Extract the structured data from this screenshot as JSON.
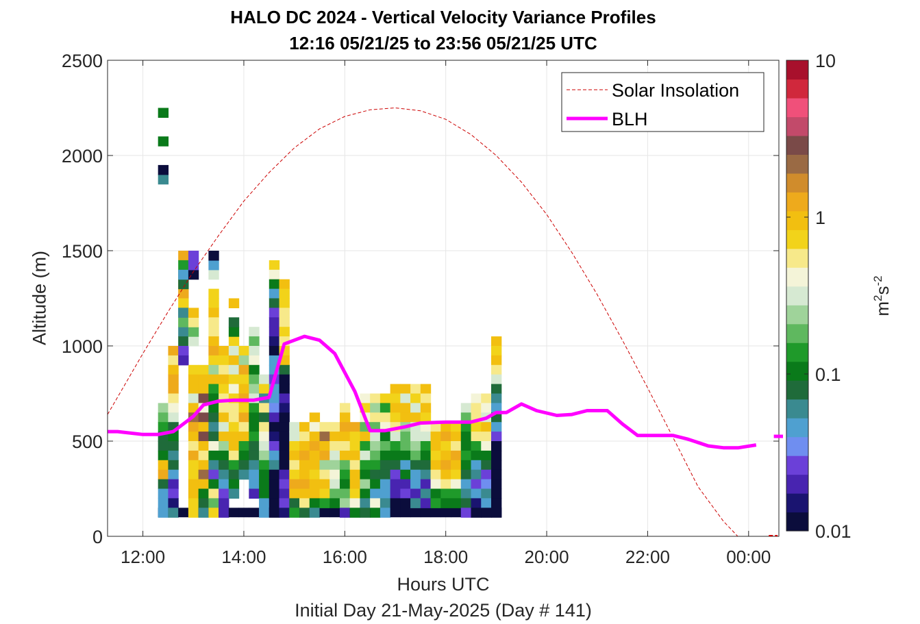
{
  "chart_data": {
    "type": "heatmap",
    "title": "HALO DC 2024 - Vertical Velocity Variance Profiles",
    "subtitle": "12:16 05/21/25 to 23:56 05/21/25  UTC",
    "xlabel": "Hours UTC",
    "note": "Initial Day 21-May-2025 (Day # 141)",
    "ylabel": "Altitude (m)",
    "x_ticks": [
      "12:00",
      "14:00",
      "16:00",
      "18:00",
      "20:00",
      "22:00",
      "00:00"
    ],
    "x_tick_hours": [
      12,
      14,
      16,
      18,
      20,
      22,
      24
    ],
    "x_range_hours": [
      11.3,
      24.6
    ],
    "y_ticks": [
      0,
      500,
      1000,
      1500,
      2000,
      2500
    ],
    "ylim": [
      0,
      2500
    ],
    "grid": true,
    "legend_position": "top-right",
    "colorbar": {
      "label_base": "m",
      "label_sup1": "2",
      "label_mid": "s",
      "label_sup2": "-2",
      "scale": "log",
      "range": [
        0.01,
        10
      ],
      "tick_labels": [
        "0.01",
        "0.1",
        "1",
        "10"
      ],
      "tick_values": [
        0.01,
        0.1,
        1,
        10
      ],
      "colors": [
        "#0b0d3c",
        "#1a1470",
        "#4824b0",
        "#6b40d8",
        "#6f8ef0",
        "#4fa0d0",
        "#3a8a90",
        "#1f6b3a",
        "#0a7a1a",
        "#1f9a2a",
        "#5fb85f",
        "#9fd39a",
        "#d6e9d2",
        "#f4f4d8",
        "#f7e98a",
        "#f2d31a",
        "#f2bf10",
        "#eeaa1c",
        "#d08c2c",
        "#9a6a44",
        "#7a4a48",
        "#c24a6a",
        "#f0507a",
        "#d0283c",
        "#a8102c"
      ]
    },
    "series": [
      {
        "name": "Solar Insolation",
        "style": "dashed",
        "color": "#cc0000",
        "x_hours": [
          11.3,
          12.0,
          12.5,
          13.0,
          13.5,
          14.0,
          14.5,
          15.0,
          15.5,
          16.0,
          16.5,
          17.0,
          17.5,
          18.0,
          18.5,
          19.0,
          19.5,
          20.0,
          20.5,
          21.0,
          21.5,
          22.0,
          22.5,
          23.0,
          23.5,
          24.0,
          24.25,
          24.6
        ],
        "altitude_m": [
          640,
          960,
          1180,
          1390,
          1580,
          1760,
          1910,
          2040,
          2140,
          2205,
          2240,
          2250,
          2235,
          2190,
          2110,
          2000,
          1860,
          1690,
          1490,
          1270,
          1030,
          780,
          520,
          260,
          80,
          -60,
          -150,
          -150
        ]
      },
      {
        "name": "BLH",
        "style": "solid",
        "color": "#ff00ff",
        "x_hours": [
          11.3,
          11.5,
          12.0,
          12.3,
          12.6,
          13.0,
          13.2,
          13.5,
          13.8,
          14.2,
          14.5,
          14.8,
          15.0,
          15.2,
          15.5,
          15.8,
          16.2,
          16.5,
          16.8,
          17.2,
          17.5,
          18.0,
          18.5,
          18.8,
          19.0,
          19.2,
          19.5,
          19.8,
          20.2,
          20.5,
          20.8,
          21.2,
          21.5,
          21.8,
          22.2,
          22.5,
          22.8,
          23.2,
          23.5,
          23.8,
          24.15
        ],
        "altitude_m": [
          550,
          550,
          535,
          535,
          550,
          630,
          690,
          710,
          715,
          715,
          730,
          1010,
          1030,
          1050,
          1030,
          960,
          760,
          555,
          555,
          575,
          595,
          600,
          600,
          620,
          650,
          650,
          695,
          660,
          635,
          640,
          660,
          660,
          590,
          530,
          530,
          530,
          510,
          475,
          465,
          465,
          480
        ],
        "offscale_segment_hours": [
          24.5,
          24.6
        ],
        "offscale_segment_altitude_m": [
          525,
          525
        ]
      }
    ],
    "heatmap": {
      "column_start_hour": 12.3,
      "column_width_hours": 0.2,
      "row_height_m": 50,
      "bottom_row_base_m": 100,
      "bottom_row_value": 0.01,
      "columns": [
        {
          "top": 700,
          "vals": [
            0.25,
            0.2,
            0.15,
            0.09,
            0.08,
            0.12,
            0.9,
            1.2,
            0.07,
            0.04,
            0.05,
            0.045,
            0.04,
            0.06,
            0.05,
            0.04,
            0.07,
            0.06,
            0.05,
            0.06,
            0.045,
            0.055,
            0.04,
            0.02,
            0.05,
            0.07,
            0.08,
            0.05,
            0.035,
            0.06,
            0.07,
            0.15,
            0.1,
            0.3,
            0.6,
            1.0,
            0.7,
            0.4,
            0.012,
            0.05,
            0.02,
            0.01
          ],
          "extra": [
            {
              "alt": 1900,
              "v": 0.06
            },
            {
              "alt": 1950,
              "v": 0.01
            },
            {
              "alt": 2100,
              "v": 0.12
            },
            {
              "alt": 2250,
              "v": 0.12
            }
          ]
        },
        {
          "top": 1000,
          "vals": [
            1.2,
            0.6,
            1.0,
            1.2,
            1.1,
            0.5,
            0.4,
            0.3,
            0.09,
            0.1,
            0.08,
            0.06,
            0.07,
            0.05,
            0.02,
            0.025,
            0.015,
            0.06,
            0.025
          ]
        },
        {
          "top": 1500,
          "vals": [
            1.2,
            0.15,
            0.1,
            1.1,
            1.3,
            0.8,
            0.06,
            0.5,
            0.06,
            0.07,
            0.03,
            0.02
          ],
          "extra": [
            {
              "alt": 1150,
              "v": 0.2
            },
            {
              "alt": 1200,
              "v": 0.06
            },
            {
              "alt": 1350,
              "v": 0.08
            },
            {
              "alt": 1400,
              "v": 0.05
            }
          ]
        },
        {
          "top": 900,
          "vals": [
            0.7,
            0.9,
            1.0,
            0.35,
            0.9,
            2.0,
            1.2,
            1.0,
            0.5,
            1.1,
            0.7,
            0.8,
            0.9,
            1.0,
            0.7,
            0.8
          ],
          "extra": [
            {
              "alt": 1050,
              "v": 0.3
            },
            {
              "alt": 1100,
              "v": 0.2
            },
            {
              "alt": 1150,
              "v": 0.5
            },
            {
              "alt": 1200,
              "v": 0.9
            },
            {
              "alt": 1400,
              "v": 0.01
            },
            {
              "alt": 1450,
              "v": 0.025
            },
            {
              "alt": 1500,
              "v": 0.03
            }
          ]
        },
        {
          "top": 900,
          "vals": [
            0.8,
            1.0,
            0.9,
            3.0,
            0.4,
            3.0,
            0.9,
            3.0,
            1.0,
            0.5,
            1.0,
            2.0,
            1.0,
            0.12,
            0.08,
            0.06
          ]
        },
        {
          "top": 1300,
          "vals": [
            0.8,
            0.7,
            1.0,
            0.6,
            0.5,
            0.9,
            1.1,
            0.7,
            0.25,
            0.9,
            0.15,
            0.1,
            0.12,
            0.08,
            0.06,
            0.07,
            0.4,
            0.12,
            0.06,
            0.03,
            0.1,
            0.5,
            0.2,
            0.7
          ],
          "extra": [
            {
              "alt": 1400,
              "v": 0.3
            },
            {
              "alt": 1450,
              "v": 0.04
            },
            {
              "alt": 1500,
              "v": 0.01
            }
          ]
        },
        {
          "top": 1000,
          "vals": [
            0.9,
            0.8,
            0.6,
            1.0,
            0.7,
            0.5,
            0.6,
            0.9,
            0.3,
            1.0,
            0.25,
            0.12,
            0.08,
            0.06,
            0.04,
            0.025,
            0.02,
            0.02,
            0.01,
            0.5,
            0.9,
            0.2
          ]
        },
        {
          "top": 1050,
          "vals": [
            0.7,
            0.3,
            0.9,
            0.3,
            0.8,
            0.4,
            0.8,
            0.6,
            0.5,
            0.8,
            0.9,
            1.0,
            0.5,
            0.15,
            0.08,
            0.12,
            0.06
          ],
          "extra": [
            {
              "alt": 1100,
              "v": 0.12
            },
            {
              "alt": 1150,
              "v": 0.07
            },
            {
              "alt": 1250,
              "v": 0.9
            }
          ]
        },
        {
          "top": 1000,
          "vals": [
            0.8,
            0.25,
            1.1,
            0.8,
            1.0,
            1.2,
            0.8,
            1.1,
            0.6,
            1.0,
            0.15,
            0.1,
            0.07,
            0.06
          ]
        },
        {
          "top": 1100,
          "vals": [
            0.35,
            0.2,
            0.3,
            0.4,
            0.12,
            0.2,
            0.25,
            0.3,
            0.15,
            0.12,
            0.1,
            0.14,
            0.08,
            0.07,
            0.06,
            0.05,
            0.04,
            0.02
          ]
        },
        {
          "top": 850,
          "vals": [
            0.3,
            0.7,
            0.06,
            0.5,
            0.07,
            0.6,
            0.4,
            0.3,
            0.25,
            0.15,
            0.12,
            0.1,
            0.12,
            0.05,
            0.04
          ]
        },
        {
          "top": 1450,
          "vals": [
            0.8,
            0.4,
            0.12,
            0.05,
            0.08,
            0.03,
            0.02,
            0.02,
            0.015,
            0.01,
            0.04,
            0.05,
            0.03,
            0.04,
            0.045,
            0.035,
            0.02,
            0.012,
            0.015,
            0.03,
            0.05,
            0.06,
            0.012,
            0.01,
            0.012,
            0.01,
            0.01
          ]
        },
        {
          "top": 1350,
          "vals": [
            1.0,
            0.8,
            0.7,
            0.5,
            0.6,
            0.7,
            0.5,
            0.7,
            0.9,
            0.08,
            0.01,
            0.01,
            0.02,
            0.015,
            0.01,
            0.01,
            0.01,
            0.01,
            0.01,
            0.012,
            0.02,
            0.025,
            0.02,
            0.03,
            0.015,
            0.012
          ]
        },
        {
          "top": 600,
          "vals": [
            0.3,
            0.35,
            0.7,
            1.0,
            0.6,
            0.8,
            1.2,
            1.0,
            0.08,
            0.15
          ]
        },
        {
          "top": 600,
          "vals": [
            1.0,
            0.6,
            0.9,
            1.2,
            1.0,
            0.9,
            1.1,
            0.9,
            0.6,
            0.07
          ]
        },
        {
          "top": 650,
          "vals": [
            1.0,
            0.4,
            0.9,
            1.1,
            0.9,
            1.0,
            0.8,
            0.9,
            1.0,
            0.1,
            0.06
          ]
        },
        {
          "top": 600,
          "vals": [
            0.6,
            2.0,
            1.0,
            1.2,
            0.25,
            0.6,
            0.9,
            0.8,
            0.15
          ]
        },
        {
          "top": 600,
          "vals": [
            0.5,
            0.9,
            0.5,
            0.3,
            0.25,
            0.4,
            0.3,
            0.2,
            0.1
          ]
        },
        {
          "top": 700,
          "vals": [
            0.6,
            1.0,
            1.4,
            0.9,
            0.6,
            0.9,
            0.2,
            0.15,
            0.12,
            0.2,
            0.25,
            0.02
          ]
        },
        {
          "top": 600,
          "vals": [
            1.2,
            0.8,
            0.7,
            1.0,
            0.6,
            1.0,
            0.9,
            0.7,
            0.4,
            0.12
          ]
        },
        {
          "top": 750,
          "vals": [
            0.4,
            0.8,
            0.4,
            0.2,
            0.9,
            0.15,
            0.3,
            0.15,
            0.12,
            0.25,
            0.12,
            0.06,
            0.08
          ]
        },
        {
          "top": 750,
          "vals": [
            0.6,
            0.25,
            0.5,
            0.2,
            0.3,
            0.25,
            0.18,
            0.15,
            0.08,
            0.12,
            0.04,
            0.4,
            0.1
          ]
        },
        {
          "top": 750,
          "vals": [
            0.8,
            0.15,
            0.6,
            0.4,
            0.12,
            0.2,
            0.1,
            0.08,
            0.07,
            0.05,
            0.045,
            0.06,
            0.045
          ]
        },
        {
          "top": 800,
          "vals": [
            0.9,
            0.7,
            1.0,
            0.8,
            0.5,
            0.3,
            0.15,
            0.12,
            0.07,
            0.025,
            0.02,
            0.02,
            0.01
          ]
        },
        {
          "top": 800,
          "vals": [
            0.9,
            0.3,
            0.9,
            1.0,
            0.25,
            0.2,
            0.18,
            0.12,
            0.04,
            0.1,
            0.02,
            0.03,
            0.01
          ]
        },
        {
          "top": 800,
          "vals": [
            0.6,
            0.8,
            0.35,
            0.9,
            0.3,
            0.3,
            0.25,
            0.2,
            0.07,
            0.05,
            0.04,
            0.02,
            0.06
          ]
        },
        {
          "top": 800,
          "vals": [
            1.0,
            0.6,
            1.0,
            0.8,
            0.4,
            0.3,
            0.15,
            0.12,
            0.08,
            0.06,
            0.02,
            0.06,
            0.02
          ]
        },
        {
          "top": 600,
          "vals": [
            0.6,
            0.9,
            1.0,
            0.8,
            0.9,
            0.6,
            0.4,
            0.12,
            0.15
          ]
        },
        {
          "top": 600,
          "vals": [
            1.0,
            1.2,
            0.8,
            1.0,
            1.1,
            0.9,
            0.5,
            0.15,
            0.12
          ]
        },
        {
          "top": 600,
          "vals": [
            0.7,
            1.0,
            0.6,
            1.1,
            1.0,
            0.8,
            0.4,
            0.15,
            0.1
          ]
        },
        {
          "top": 700,
          "vals": [
            0.3,
            0.2,
            0.15,
            0.12,
            0.1,
            0.15,
            0.12,
            0.08,
            0.05,
            0.06,
            0.07,
            0.025
          ]
        },
        {
          "top": 750,
          "vals": [
            0.4,
            0.6,
            0.5,
            0.8,
            0.6,
            0.15,
            0.12,
            0.05,
            0.06,
            0.03,
            0.04,
            0.015,
            0.01
          ]
        },
        {
          "top": 750,
          "vals": [
            0.5,
            0.4,
            0.3,
            0.9,
            0.6,
            0.4,
            0.12,
            0.08,
            0.025,
            0.035,
            0.06,
            0.04,
            0.01
          ]
        },
        {
          "top": 1050,
          "vals": [
            0.9,
            0.8,
            0.9,
            0.6,
            0.3,
            0.08,
            0.06,
            0.04,
            0.07,
            0.04,
            0.025,
            0.01,
            0.01,
            0.01,
            0.01,
            0.01,
            0.01,
            0.01,
            0.01
          ]
        }
      ]
    }
  }
}
